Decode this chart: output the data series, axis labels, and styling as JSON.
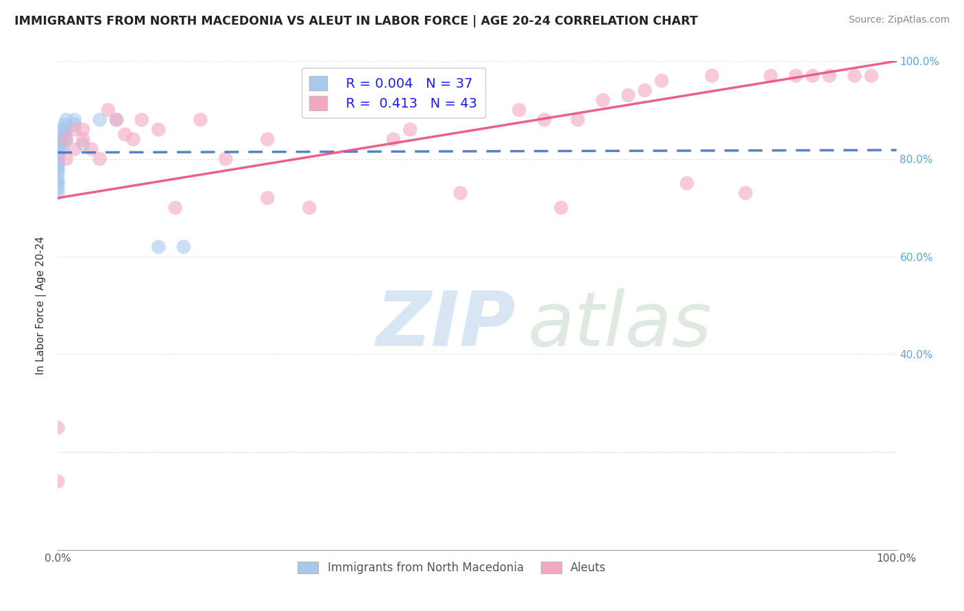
{
  "title": "IMMIGRANTS FROM NORTH MACEDONIA VS ALEUT IN LABOR FORCE | AGE 20-24 CORRELATION CHART",
  "source": "Source: ZipAtlas.com",
  "ylabel": "In Labor Force | Age 20-24",
  "xlim": [
    0.0,
    1.0
  ],
  "ylim": [
    0.0,
    1.0
  ],
  "xticks": [
    0.0,
    0.1,
    0.2,
    0.3,
    0.4,
    0.5,
    0.6,
    0.7,
    0.8,
    0.9,
    1.0
  ],
  "xticklabels": [
    "0.0%",
    "",
    "",
    "",
    "",
    "",
    "",
    "",
    "",
    "",
    "100.0%"
  ],
  "blue_r": 0.004,
  "blue_n": 37,
  "pink_r": 0.413,
  "pink_n": 43,
  "blue_color": "#A8C8ED",
  "pink_color": "#F4A8C0",
  "blue_line_color": "#4472C4",
  "pink_line_color": "#E8507A",
  "blue_points_x": [
    0.0,
    0.0,
    0.0,
    0.0,
    0.0,
    0.0,
    0.0,
    0.0,
    0.0,
    0.0,
    0.0,
    0.0,
    0.0,
    0.0,
    0.0,
    0.0,
    0.0,
    0.0,
    0.0,
    0.0,
    0.005,
    0.005,
    0.005,
    0.005,
    0.005,
    0.008,
    0.008,
    0.01,
    0.01,
    0.01,
    0.02,
    0.02,
    0.03,
    0.05,
    0.07,
    0.12,
    0.15
  ],
  "blue_points_y": [
    0.84,
    0.83,
    0.83,
    0.82,
    0.82,
    0.82,
    0.81,
    0.81,
    0.8,
    0.8,
    0.79,
    0.79,
    0.78,
    0.78,
    0.77,
    0.76,
    0.75,
    0.75,
    0.74,
    0.73,
    0.86,
    0.85,
    0.84,
    0.83,
    0.82,
    0.87,
    0.85,
    0.88,
    0.86,
    0.84,
    0.88,
    0.87,
    0.83,
    0.88,
    0.88,
    0.62,
    0.62
  ],
  "pink_points_x": [
    0.0,
    0.0,
    0.01,
    0.01,
    0.02,
    0.02,
    0.03,
    0.03,
    0.04,
    0.05,
    0.06,
    0.07,
    0.08,
    0.09,
    0.1,
    0.12,
    0.14,
    0.17,
    0.2,
    0.25,
    0.25,
    0.3,
    0.35,
    0.4,
    0.42,
    0.48,
    0.55,
    0.58,
    0.6,
    0.62,
    0.65,
    0.68,
    0.7,
    0.72,
    0.75,
    0.78,
    0.82,
    0.85,
    0.88,
    0.9,
    0.92,
    0.95,
    0.97
  ],
  "pink_points_y": [
    0.25,
    0.14,
    0.8,
    0.84,
    0.82,
    0.86,
    0.84,
    0.86,
    0.82,
    0.8,
    0.9,
    0.88,
    0.85,
    0.84,
    0.88,
    0.86,
    0.7,
    0.88,
    0.8,
    0.84,
    0.72,
    0.7,
    0.9,
    0.84,
    0.86,
    0.73,
    0.9,
    0.88,
    0.7,
    0.88,
    0.92,
    0.93,
    0.94,
    0.96,
    0.75,
    0.97,
    0.73,
    0.97,
    0.97,
    0.97,
    0.97,
    0.97,
    0.97
  ],
  "blue_intercept": 0.813,
  "blue_slope": 0.005,
  "pink_intercept": 0.72,
  "pink_slope": 0.28,
  "background_color": "#FFFFFF",
  "grid_color": "#DDDDDD",
  "right_yticks": [
    0.4,
    0.6,
    0.8,
    1.0
  ],
  "right_yticklabels": [
    "40.0%",
    "60.0%",
    "80.0%",
    "100.0%"
  ]
}
